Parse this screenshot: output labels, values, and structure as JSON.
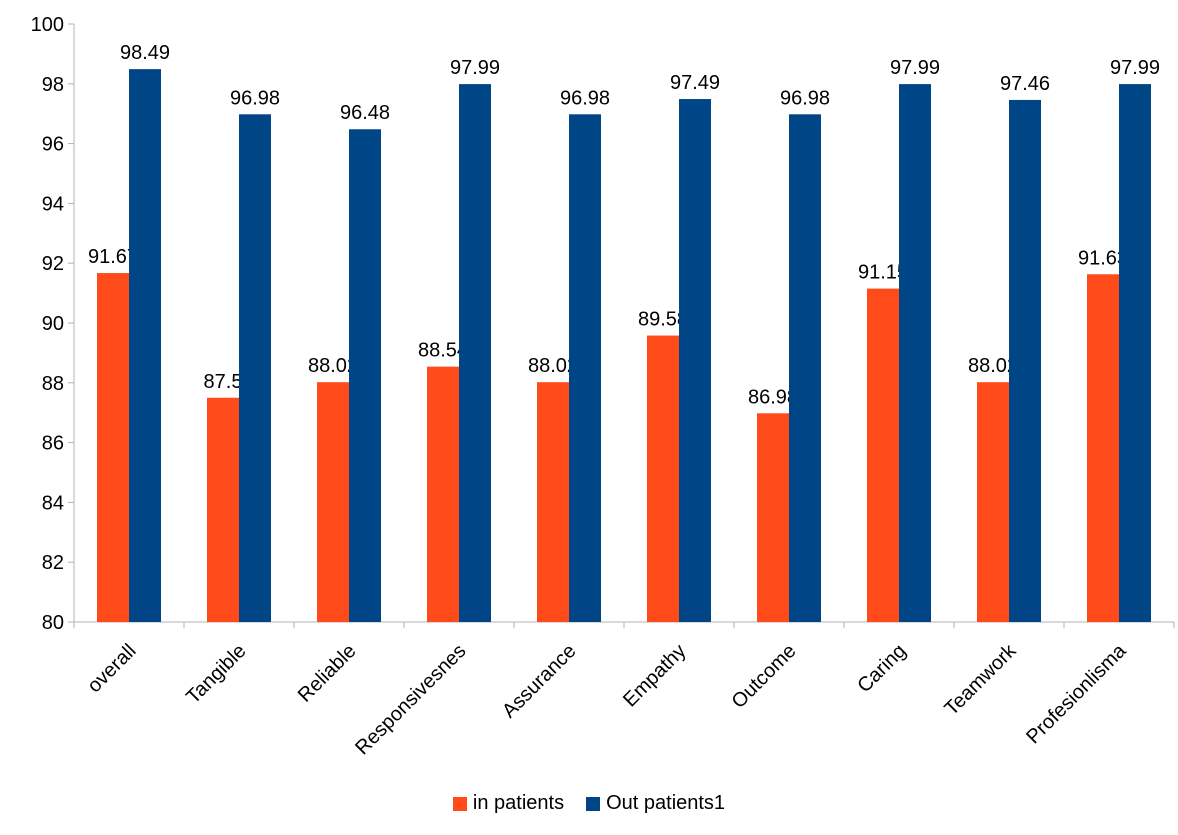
{
  "chart_data": {
    "type": "bar",
    "title": "",
    "xlabel": "",
    "ylabel": "",
    "ylim": [
      80,
      100
    ],
    "yticks": [
      80,
      82,
      84,
      86,
      88,
      90,
      92,
      94,
      96,
      98,
      100
    ],
    "grid": false,
    "legend_position": "bottom",
    "categories": [
      "overall",
      "Tangible",
      "Reliable",
      "Responsivesnes",
      "Assurance",
      "Empathy",
      "Outcome",
      "Caring",
      "Teamwork",
      "Profesionlisma"
    ],
    "series": [
      {
        "name": "in patients",
        "color": "#ff4a1a",
        "values": [
          91.67,
          87.5,
          88.02,
          88.54,
          88.02,
          89.58,
          86.98,
          91.15,
          88.02,
          91.63
        ],
        "labels": [
          "91.67",
          "87.5",
          "88.02",
          "88.54",
          "88.02",
          "89.58",
          "86.98",
          "91.15",
          "88.02",
          "91.63"
        ]
      },
      {
        "name": "Out patients1",
        "color": "#004586",
        "values": [
          98.49,
          96.98,
          96.48,
          97.99,
          96.98,
          97.49,
          96.98,
          97.99,
          97.46,
          97.99
        ],
        "labels": [
          "98.49",
          "96.98",
          "96.48",
          "97.99",
          "96.98",
          "97.49",
          "96.98",
          "97.99",
          "97.46",
          "97.99"
        ]
      }
    ]
  }
}
